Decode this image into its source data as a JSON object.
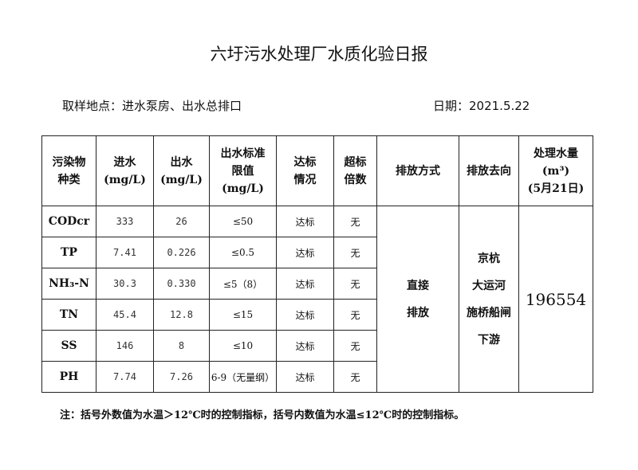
{
  "title": "六圩污水处理厂水质化验日报",
  "location": "取样地点：进水泵房、出水总排口",
  "date": "日期：2021.5.22",
  "headers": {
    "type": "污染物\n种类",
    "inflow": "进水\n(mg/L)",
    "outflow": "出水\n(mg/L)",
    "limit": "出水标准\n限值\n(mg/L)",
    "status": "达标\n情况",
    "excess": "超标\n倍数",
    "method": "排放方式",
    "direction": "排放去向",
    "volume": "处理水量\n(m³)\n(5月21日)"
  },
  "rows": [
    {
      "name": "CODcr",
      "in": "333",
      "out": "26",
      "limit": "≤50",
      "status": "达标",
      "excess": "无"
    },
    {
      "name": "TP",
      "in": "7.41",
      "out": "0.226",
      "limit": "≤0.5",
      "status": "达标",
      "excess": "无"
    },
    {
      "name": "NH₃-N",
      "in": "30.3",
      "out": "0.330",
      "limit": "≤5（8）",
      "status": "达标",
      "excess": "无"
    },
    {
      "name": "TN",
      "in": "45.4",
      "out": "12.8",
      "limit": "≤15",
      "status": "达标",
      "excess": "无"
    },
    {
      "name": "SS",
      "in": "146",
      "out": "8",
      "limit": "≤10",
      "status": "达标",
      "excess": "无"
    },
    {
      "name": "PH",
      "in": "7.74",
      "out": "7.26",
      "limit": "6-9（无量纲）",
      "status": "达标",
      "excess": "无"
    }
  ],
  "method": "直接\n排放",
  "direction": "京杭\n大运河\n施桥船闸\n下游",
  "volume": "196554",
  "note": "注：括号外数值为水温＞12℃时的控制指标，括号内数值为水温≤12℃时的控制指标。"
}
